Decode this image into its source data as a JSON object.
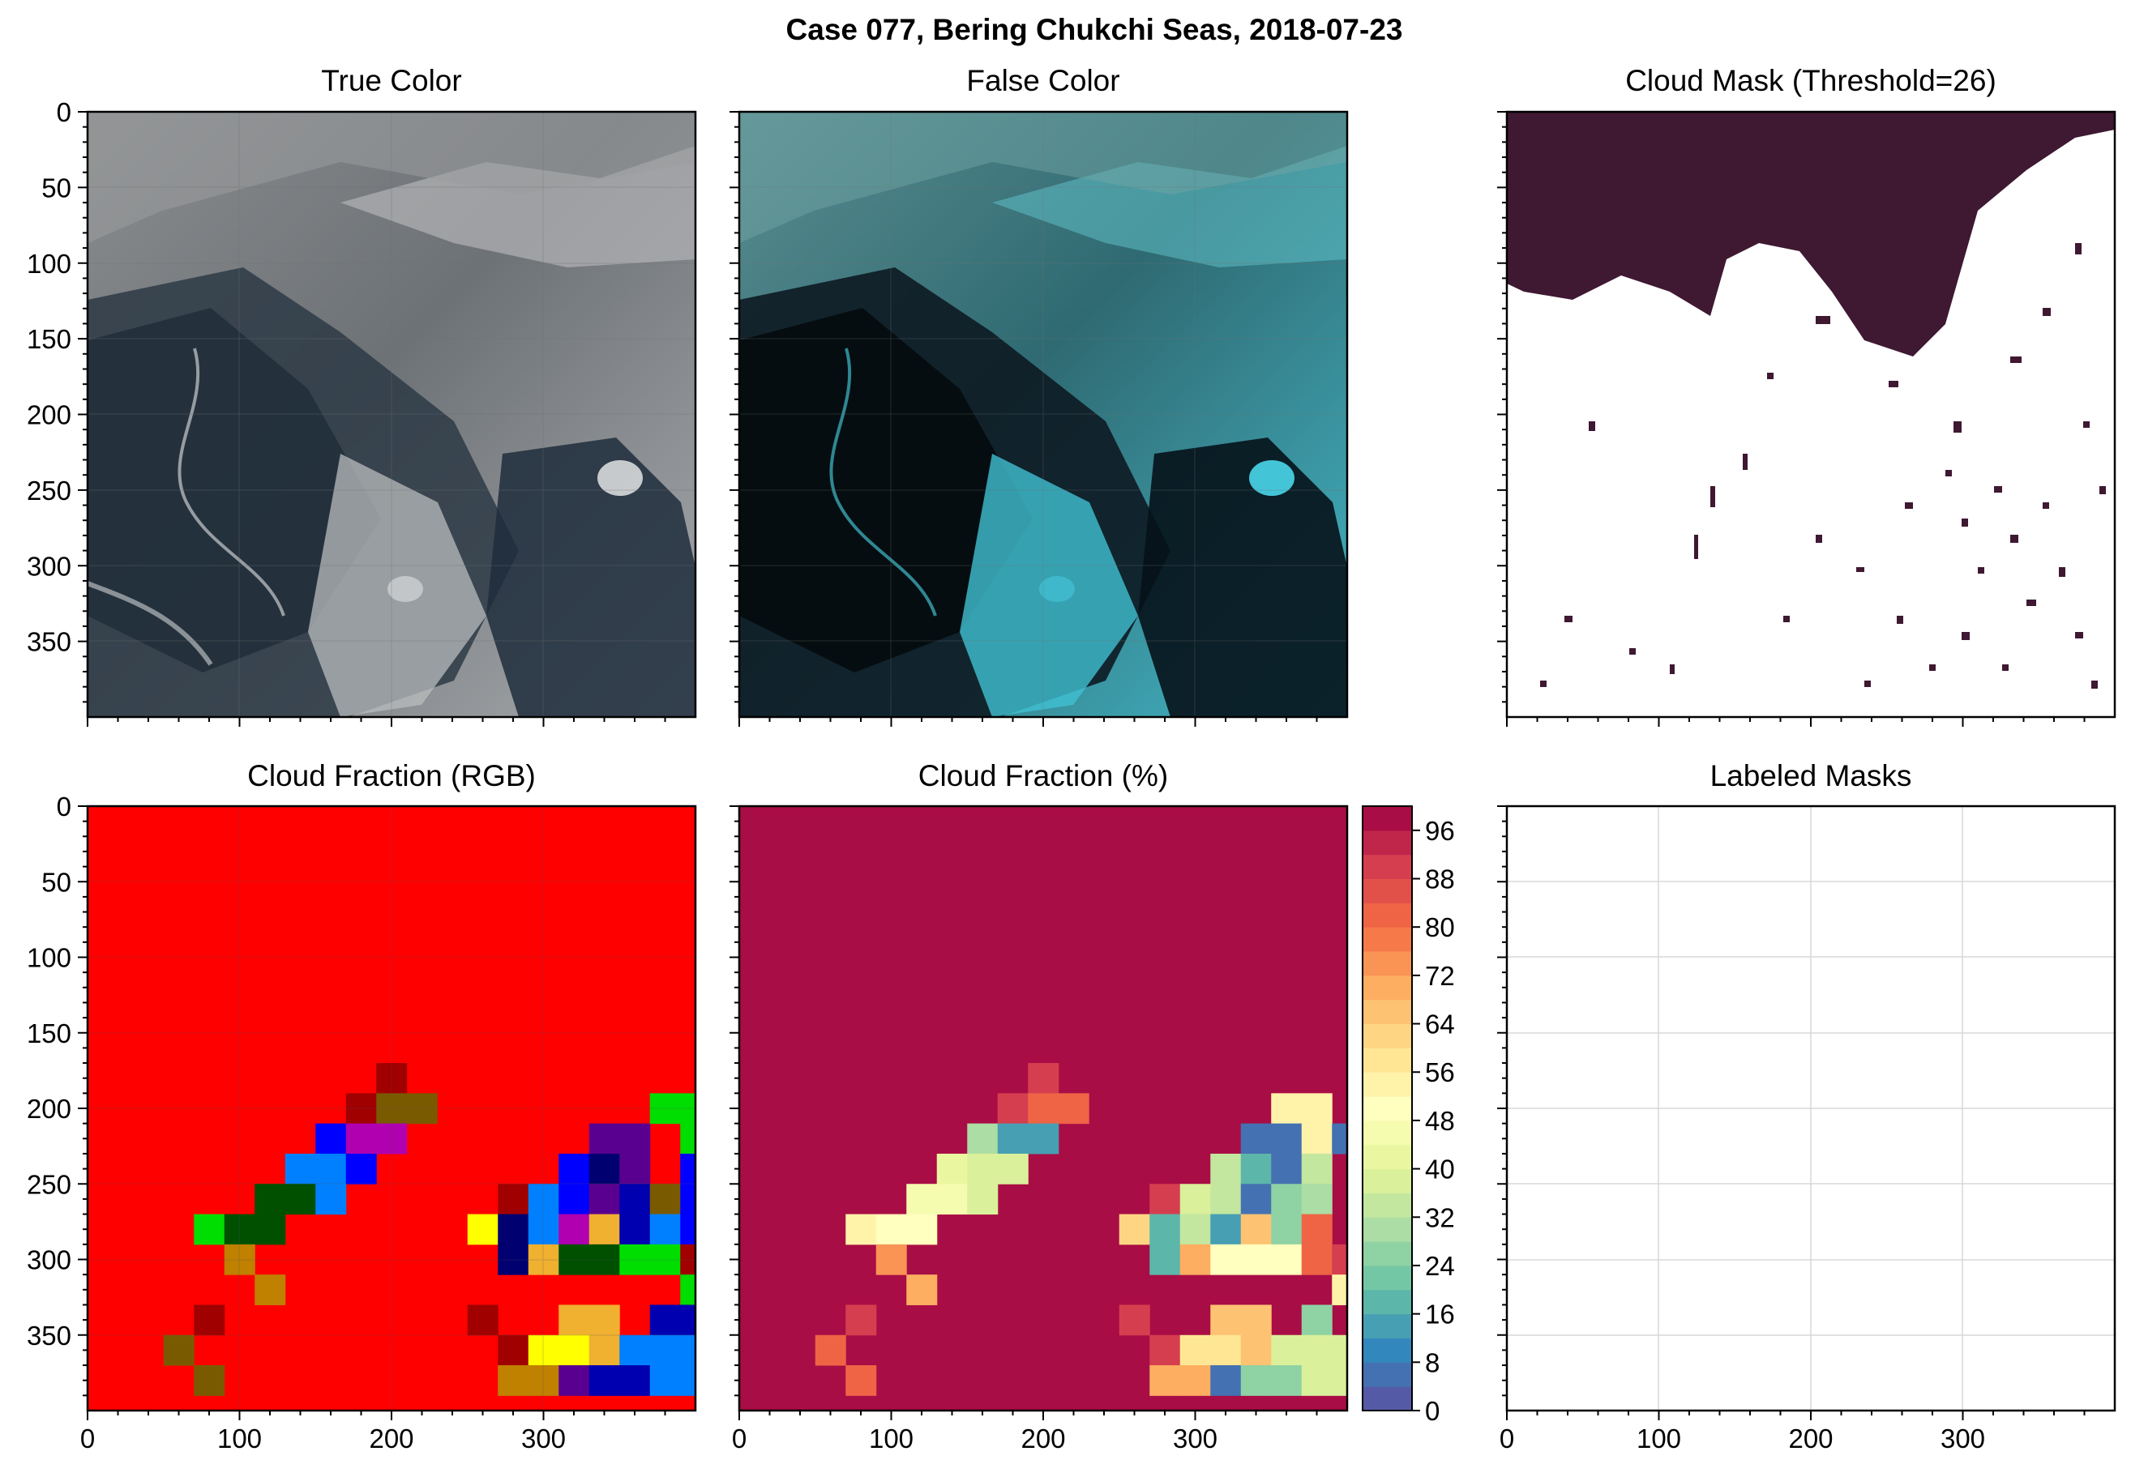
{
  "figure": {
    "suptitle": "Case 077, Bering Chukchi Seas, 2018-07-23"
  },
  "panels": {
    "true_color": {
      "title": "True Color"
    },
    "false_color": {
      "title": "False Color"
    },
    "cloud_mask": {
      "title": "Cloud Mask (Threshold=26)"
    },
    "cloud_fraction_rgb": {
      "title": "Cloud Fraction (RGB)"
    },
    "cloud_fraction_pct": {
      "title": "Cloud Fraction (%)"
    },
    "labeled_masks": {
      "title": "Labeled Masks"
    }
  },
  "colors": {
    "mask_cloud": "#3f1832",
    "fraction_high": "#9e0142",
    "rgb_background": "#ff0000"
  },
  "chart_data": [
    {
      "type": "heatmap",
      "title": "True Color",
      "xlim": [
        0,
        400
      ],
      "ylim": [
        400,
        0
      ],
      "yticks": [
        0,
        50,
        100,
        150,
        200,
        250,
        300,
        350
      ],
      "grid": true,
      "content": "satellite true-color image (sea ice, open water, clouds)"
    },
    {
      "type": "heatmap",
      "title": "False Color",
      "xlim": [
        0,
        400
      ],
      "ylim": [
        400,
        0
      ],
      "grid": true,
      "content": "satellite false-color image"
    },
    {
      "type": "heatmap",
      "title": "Cloud Mask (Threshold=26)",
      "xlim": [
        0,
        400
      ],
      "ylim": [
        400,
        0
      ],
      "content": "binary mask; dark = masked"
    },
    {
      "type": "heatmap",
      "title": "Cloud Fraction (RGB)",
      "xlim": [
        0,
        400
      ],
      "ylim": [
        400,
        0
      ],
      "xticks": [
        0,
        100,
        200,
        300
      ],
      "yticks": [
        0,
        50,
        100,
        150,
        200,
        250,
        300,
        350
      ],
      "grid": true,
      "cell_size": 20,
      "default_color": "#ff0000",
      "cells": [
        {
          "x": 200,
          "y": 180,
          "c": "#a00000"
        },
        {
          "x": 180,
          "y": 200,
          "c": "#a00000"
        },
        {
          "x": 200,
          "y": 200,
          "c": "#7a5a00"
        },
        {
          "x": 220,
          "y": 200,
          "c": "#7a5a00"
        },
        {
          "x": 160,
          "y": 220,
          "c": "#0000ff"
        },
        {
          "x": 180,
          "y": 220,
          "c": "#b000b0"
        },
        {
          "x": 200,
          "y": 220,
          "c": "#b000b0"
        },
        {
          "x": 140,
          "y": 240,
          "c": "#0080ff"
        },
        {
          "x": 160,
          "y": 240,
          "c": "#0080ff"
        },
        {
          "x": 180,
          "y": 240,
          "c": "#0000ff"
        },
        {
          "x": 120,
          "y": 260,
          "c": "#005000"
        },
        {
          "x": 140,
          "y": 260,
          "c": "#005000"
        },
        {
          "x": 160,
          "y": 260,
          "c": "#0080ff"
        },
        {
          "x": 80,
          "y": 280,
          "c": "#00dd00"
        },
        {
          "x": 100,
          "y": 280,
          "c": "#005000"
        },
        {
          "x": 120,
          "y": 280,
          "c": "#005000"
        },
        {
          "x": 100,
          "y": 300,
          "c": "#c08000"
        },
        {
          "x": 120,
          "y": 320,
          "c": "#c08000"
        },
        {
          "x": 80,
          "y": 340,
          "c": "#a00000"
        },
        {
          "x": 60,
          "y": 360,
          "c": "#7a5a00"
        },
        {
          "x": 80,
          "y": 380,
          "c": "#7a5a00"
        },
        {
          "x": 380,
          "y": 200,
          "c": "#00dd00"
        },
        {
          "x": 400,
          "y": 200,
          "c": "#00dd00"
        },
        {
          "x": 340,
          "y": 220,
          "c": "#5a0090"
        },
        {
          "x": 360,
          "y": 220,
          "c": "#5a0090"
        },
        {
          "x": 400,
          "y": 220,
          "c": "#00dd00"
        },
        {
          "x": 320,
          "y": 240,
          "c": "#0000ff"
        },
        {
          "x": 340,
          "y": 240,
          "c": "#000070"
        },
        {
          "x": 360,
          "y": 240,
          "c": "#5a0090"
        },
        {
          "x": 400,
          "y": 240,
          "c": "#0000ff"
        },
        {
          "x": 280,
          "y": 260,
          "c": "#a00000"
        },
        {
          "x": 300,
          "y": 260,
          "c": "#0080ff"
        },
        {
          "x": 320,
          "y": 260,
          "c": "#0000ff"
        },
        {
          "x": 340,
          "y": 260,
          "c": "#5a0090"
        },
        {
          "x": 360,
          "y": 260,
          "c": "#0000b0"
        },
        {
          "x": 380,
          "y": 260,
          "c": "#7a5a00"
        },
        {
          "x": 400,
          "y": 260,
          "c": "#0000ff"
        },
        {
          "x": 260,
          "y": 280,
          "c": "#ffff00"
        },
        {
          "x": 280,
          "y": 280,
          "c": "#000070"
        },
        {
          "x": 300,
          "y": 280,
          "c": "#0080ff"
        },
        {
          "x": 320,
          "y": 280,
          "c": "#b000b0"
        },
        {
          "x": 340,
          "y": 280,
          "c": "#f0b030"
        },
        {
          "x": 360,
          "y": 280,
          "c": "#0000b0"
        },
        {
          "x": 380,
          "y": 280,
          "c": "#0080ff"
        },
        {
          "x": 400,
          "y": 280,
          "c": "#0000ff"
        },
        {
          "x": 280,
          "y": 300,
          "c": "#000070"
        },
        {
          "x": 300,
          "y": 300,
          "c": "#f0b030"
        },
        {
          "x": 320,
          "y": 300,
          "c": "#005000"
        },
        {
          "x": 340,
          "y": 300,
          "c": "#005000"
        },
        {
          "x": 360,
          "y": 300,
          "c": "#00dd00"
        },
        {
          "x": 380,
          "y": 300,
          "c": "#00dd00"
        },
        {
          "x": 400,
          "y": 300,
          "c": "#a00000"
        },
        {
          "x": 400,
          "y": 320,
          "c": "#00dd00"
        },
        {
          "x": 260,
          "y": 340,
          "c": "#a00000"
        },
        {
          "x": 320,
          "y": 340,
          "c": "#f0b030"
        },
        {
          "x": 340,
          "y": 340,
          "c": "#f0b030"
        },
        {
          "x": 380,
          "y": 340,
          "c": "#0000b0"
        },
        {
          "x": 400,
          "y": 340,
          "c": "#0000b0"
        },
        {
          "x": 280,
          "y": 360,
          "c": "#a00000"
        },
        {
          "x": 300,
          "y": 360,
          "c": "#ffff00"
        },
        {
          "x": 320,
          "y": 360,
          "c": "#ffff00"
        },
        {
          "x": 340,
          "y": 360,
          "c": "#f0b030"
        },
        {
          "x": 360,
          "y": 360,
          "c": "#0080ff"
        },
        {
          "x": 380,
          "y": 360,
          "c": "#0080ff"
        },
        {
          "x": 400,
          "y": 360,
          "c": "#0080ff"
        },
        {
          "x": 280,
          "y": 380,
          "c": "#c08000"
        },
        {
          "x": 300,
          "y": 380,
          "c": "#c08000"
        },
        {
          "x": 320,
          "y": 380,
          "c": "#5a0090"
        },
        {
          "x": 340,
          "y": 380,
          "c": "#0000b0"
        },
        {
          "x": 360,
          "y": 380,
          "c": "#0000b0"
        },
        {
          "x": 380,
          "y": 380,
          "c": "#0080ff"
        },
        {
          "x": 400,
          "y": 380,
          "c": "#0080ff"
        }
      ]
    },
    {
      "type": "heatmap",
      "title": "Cloud Fraction (%)",
      "xlim": [
        0,
        400
      ],
      "ylim": [
        400,
        0
      ],
      "cell_size": 20,
      "default_value": 99,
      "colorbar": {
        "ticks": [
          0,
          8,
          16,
          24,
          32,
          40,
          48,
          56,
          64,
          72,
          80,
          88,
          96
        ],
        "range": [
          0,
          100
        ],
        "step": 4
      },
      "cells": [
        {
          "x": 200,
          "y": 180,
          "v": 88
        },
        {
          "x": 180,
          "y": 200,
          "v": 88
        },
        {
          "x": 200,
          "y": 200,
          "v": 80
        },
        {
          "x": 220,
          "y": 200,
          "v": 80
        },
        {
          "x": 160,
          "y": 220,
          "v": 30
        },
        {
          "x": 180,
          "y": 220,
          "v": 12
        },
        {
          "x": 200,
          "y": 220,
          "v": 12
        },
        {
          "x": 140,
          "y": 240,
          "v": 40
        },
        {
          "x": 160,
          "y": 240,
          "v": 36
        },
        {
          "x": 180,
          "y": 240,
          "v": 38
        },
        {
          "x": 120,
          "y": 260,
          "v": 46
        },
        {
          "x": 140,
          "y": 260,
          "v": 46
        },
        {
          "x": 160,
          "y": 260,
          "v": 36
        },
        {
          "x": 80,
          "y": 280,
          "v": 55
        },
        {
          "x": 100,
          "y": 280,
          "v": 48
        },
        {
          "x": 120,
          "y": 280,
          "v": 48
        },
        {
          "x": 100,
          "y": 300,
          "v": 72
        },
        {
          "x": 120,
          "y": 320,
          "v": 68
        },
        {
          "x": 80,
          "y": 340,
          "v": 88
        },
        {
          "x": 60,
          "y": 360,
          "v": 80
        },
        {
          "x": 80,
          "y": 380,
          "v": 80
        },
        {
          "x": 360,
          "y": 200,
          "v": 55
        },
        {
          "x": 380,
          "y": 200,
          "v": 55
        },
        {
          "x": 340,
          "y": 220,
          "v": 6
        },
        {
          "x": 360,
          "y": 220,
          "v": 6
        },
        {
          "x": 380,
          "y": 220,
          "v": 54
        },
        {
          "x": 400,
          "y": 220,
          "v": 6
        },
        {
          "x": 320,
          "y": 240,
          "v": 32
        },
        {
          "x": 340,
          "y": 240,
          "v": 18
        },
        {
          "x": 360,
          "y": 240,
          "v": 4
        },
        {
          "x": 380,
          "y": 240,
          "v": 34
        },
        {
          "x": 280,
          "y": 260,
          "v": 90
        },
        {
          "x": 300,
          "y": 260,
          "v": 38
        },
        {
          "x": 320,
          "y": 260,
          "v": 34
        },
        {
          "x": 340,
          "y": 260,
          "v": 4
        },
        {
          "x": 360,
          "y": 260,
          "v": 24
        },
        {
          "x": 380,
          "y": 260,
          "v": 30
        },
        {
          "x": 260,
          "y": 280,
          "v": 62
        },
        {
          "x": 280,
          "y": 280,
          "v": 18
        },
        {
          "x": 300,
          "y": 280,
          "v": 32
        },
        {
          "x": 320,
          "y": 280,
          "v": 12
        },
        {
          "x": 340,
          "y": 280,
          "v": 66
        },
        {
          "x": 360,
          "y": 280,
          "v": 24
        },
        {
          "x": 380,
          "y": 280,
          "v": 80
        },
        {
          "x": 280,
          "y": 300,
          "v": 18
        },
        {
          "x": 300,
          "y": 300,
          "v": 68
        },
        {
          "x": 320,
          "y": 300,
          "v": 50
        },
        {
          "x": 340,
          "y": 300,
          "v": 50
        },
        {
          "x": 360,
          "y": 300,
          "v": 48
        },
        {
          "x": 380,
          "y": 300,
          "v": 80
        },
        {
          "x": 400,
          "y": 300,
          "v": 88
        },
        {
          "x": 400,
          "y": 320,
          "v": 55
        },
        {
          "x": 260,
          "y": 340,
          "v": 88
        },
        {
          "x": 320,
          "y": 340,
          "v": 64
        },
        {
          "x": 340,
          "y": 340,
          "v": 64
        },
        {
          "x": 380,
          "y": 340,
          "v": 24
        },
        {
          "x": 280,
          "y": 360,
          "v": 90
        },
        {
          "x": 300,
          "y": 360,
          "v": 58
        },
        {
          "x": 320,
          "y": 360,
          "v": 58
        },
        {
          "x": 340,
          "y": 360,
          "v": 64
        },
        {
          "x": 360,
          "y": 360,
          "v": 36
        },
        {
          "x": 380,
          "y": 360,
          "v": 36
        },
        {
          "x": 400,
          "y": 360,
          "v": 36
        },
        {
          "x": 280,
          "y": 380,
          "v": 70
        },
        {
          "x": 300,
          "y": 380,
          "v": 70
        },
        {
          "x": 320,
          "y": 380,
          "v": 4
        },
        {
          "x": 340,
          "y": 380,
          "v": 24
        },
        {
          "x": 360,
          "y": 380,
          "v": 24
        },
        {
          "x": 380,
          "y": 380,
          "v": 36
        },
        {
          "x": 400,
          "y": 380,
          "v": 36
        }
      ]
    },
    {
      "type": "heatmap",
      "title": "Labeled Masks",
      "xlim": [
        0,
        400
      ],
      "ylim": [
        400,
        0
      ],
      "xticks": [
        0,
        100,
        200,
        300
      ],
      "grid": true,
      "content": "empty"
    }
  ]
}
